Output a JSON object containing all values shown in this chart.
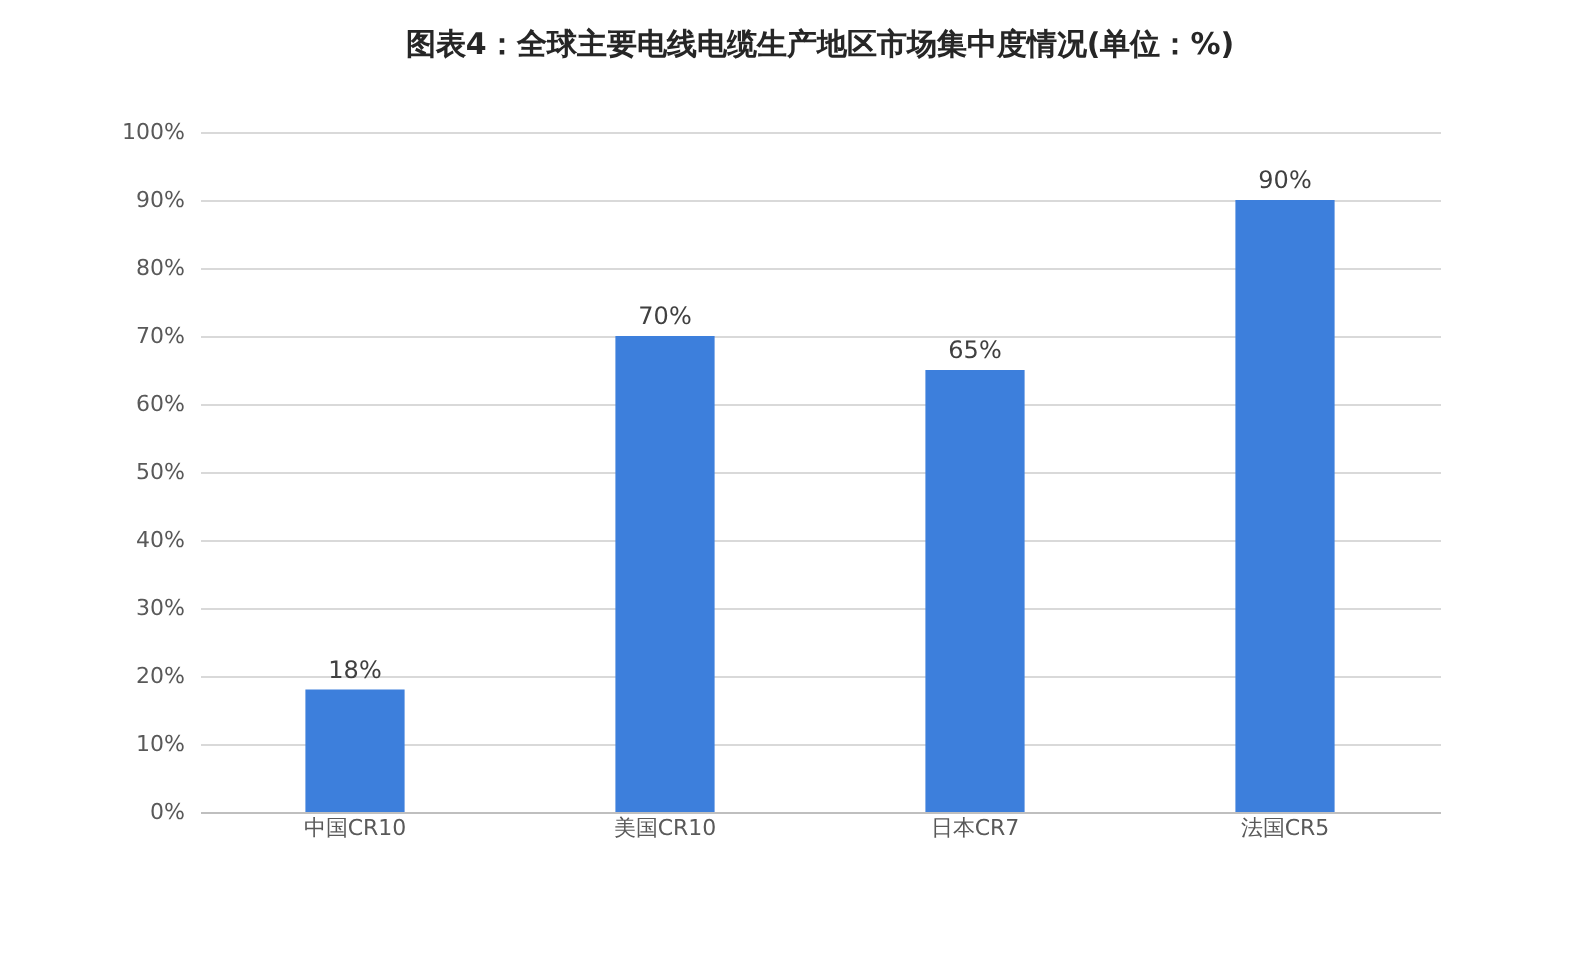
{
  "chart_data": {
    "type": "bar",
    "title": "图表4：全球主要电线电缆生产地区市场集中度情况(单位：%)",
    "categories": [
      "中国CR10",
      "美国CR10",
      "日本CR7",
      "法国CR5"
    ],
    "values": [
      18,
      70,
      65,
      90
    ],
    "value_labels": [
      "18%",
      "70%",
      "65%",
      "90%"
    ],
    "color": "#3d7fdc",
    "ylim": [
      0,
      100
    ],
    "yticks": [
      {
        "value": 0,
        "label": "0%"
      },
      {
        "value": 10,
        "label": "10%"
      },
      {
        "value": 20,
        "label": "20%"
      },
      {
        "value": 30,
        "label": "30%"
      },
      {
        "value": 40,
        "label": "40%"
      },
      {
        "value": 50,
        "label": "50%"
      },
      {
        "value": 60,
        "label": "60%"
      },
      {
        "value": 70,
        "label": "70%"
      },
      {
        "value": 80,
        "label": "80%"
      },
      {
        "value": 90,
        "label": "90%"
      },
      {
        "value": 100,
        "label": "100%"
      }
    ],
    "grid": "y"
  }
}
